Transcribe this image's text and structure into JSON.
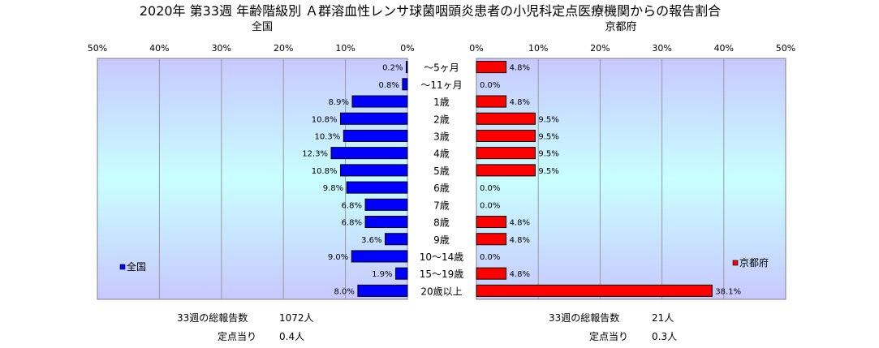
{
  "title": "2020年 第33週 年齢階級別 Ａ群溶血性レンサ球菌咽頭炎患者の小児科定点医療機関からの報告割合",
  "colors": {
    "national": "#0000ff",
    "kyoto": "#ff0000",
    "plot_gradient_top": "#c8c8ff",
    "plot_gradient_mid": "#c8ffff",
    "plot_gradient_bottom": "#c8c8ff"
  },
  "chart_data": [
    {
      "type": "bar",
      "orientation": "horizontal",
      "direction": "reversed",
      "title": "全国",
      "xlim": [
        0,
        50
      ],
      "unit": "%",
      "ticks": [
        "50%",
        "40%",
        "30%",
        "20%",
        "10%",
        "0%"
      ],
      "legend": "全国",
      "legend_position": "bottom-left",
      "grid": true,
      "categories": [
        "～5ヶ月",
        "～11ヶ月",
        "1歳",
        "2歳",
        "3歳",
        "4歳",
        "5歳",
        "6歳",
        "7歳",
        "8歳",
        "9歳",
        "10～14歳",
        "15～19歳",
        "20歳以上"
      ],
      "values": [
        0.2,
        0.8,
        8.9,
        10.8,
        10.3,
        12.3,
        10.8,
        9.8,
        6.8,
        6.8,
        3.6,
        9.0,
        1.9,
        8.0
      ],
      "labels": [
        "0.2%",
        "0.8%",
        "8.9%",
        "10.8%",
        "10.3%",
        "12.3%",
        "10.8%",
        "9.8%",
        "6.8%",
        "6.8%",
        "3.6%",
        "9.0%",
        "1.9%",
        "8.0%"
      ]
    },
    {
      "type": "bar",
      "orientation": "horizontal",
      "title": "京都府",
      "xlim": [
        0,
        50
      ],
      "unit": "%",
      "ticks": [
        "0%",
        "10%",
        "20%",
        "30%",
        "40%",
        "50%"
      ],
      "legend": "京都府",
      "legend_position": "bottom-right",
      "grid": true,
      "categories": [
        "～5ヶ月",
        "～11ヶ月",
        "1歳",
        "2歳",
        "3歳",
        "4歳",
        "5歳",
        "6歳",
        "7歳",
        "8歳",
        "9歳",
        "10～14歳",
        "15～19歳",
        "20歳以上"
      ],
      "values": [
        4.8,
        0.0,
        4.8,
        9.5,
        9.5,
        9.5,
        9.5,
        0.0,
        0.0,
        4.8,
        4.8,
        0.0,
        4.8,
        38.1
      ],
      "labels": [
        "4.8%",
        "0.0%",
        "4.8%",
        "9.5%",
        "9.5%",
        "9.5%",
        "9.5%",
        "0.0%",
        "0.0%",
        "4.8%",
        "4.8%",
        "0.0%",
        "4.8%",
        "38.1%"
      ]
    }
  ],
  "footer": {
    "national": {
      "total_label": "33週の総報告数",
      "total_value": "1072人",
      "per_label": "定点当り",
      "per_value": "0.4人"
    },
    "kyoto": {
      "total_label": "33週の総報告数",
      "total_value": "21人",
      "per_label": "定点当り",
      "per_value": "0.3人"
    }
  }
}
